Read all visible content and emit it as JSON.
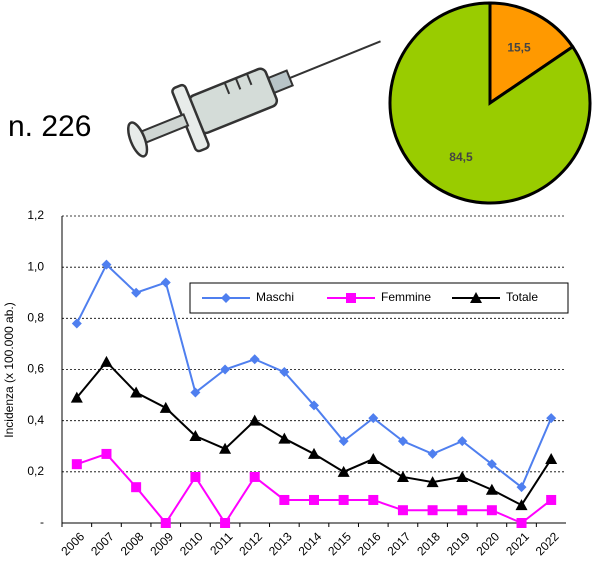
{
  "chart_data": [
    {
      "type": "line",
      "y_label": "Incidenza (x 100.000 ab.)",
      "categories": [
        "2006",
        "2007",
        "2008",
        "2009",
        "2010",
        "2011",
        "2012",
        "2013",
        "2014",
        "2015",
        "2016",
        "2017",
        "2018",
        "2019",
        "2020",
        "2021",
        "2022"
      ],
      "series": [
        {
          "name": "Maschi",
          "color": "#4f7fef",
          "marker": "diamond",
          "values": [
            0.78,
            1.01,
            0.9,
            0.94,
            0.51,
            0.6,
            0.64,
            0.59,
            0.46,
            0.32,
            0.41,
            0.32,
            0.27,
            0.32,
            0.23,
            0.14,
            0.41
          ]
        },
        {
          "name": "Femmine",
          "color": "#ff00ff",
          "marker": "square",
          "values": [
            0.23,
            0.27,
            0.14,
            0,
            0.18,
            0,
            0.18,
            0.09,
            0.09,
            0.09,
            0.09,
            0.05,
            0.05,
            0.05,
            0.05,
            0,
            0.09
          ]
        },
        {
          "name": "Totale",
          "color": "#000000",
          "marker": "triangle",
          "values": [
            0.49,
            0.63,
            0.51,
            0.45,
            0.34,
            0.29,
            0.4,
            0.33,
            0.27,
            0.2,
            0.25,
            0.18,
            0.16,
            0.18,
            0.13,
            0.07,
            0.25
          ]
        }
      ],
      "ylim": [
        0,
        1.2
      ],
      "yticks": [
        {
          "value": 0,
          "label": "-"
        },
        {
          "value": 0.2,
          "label": "0,2"
        },
        {
          "value": 0.4,
          "label": "0,4"
        },
        {
          "value": 0.6,
          "label": "0,6"
        },
        {
          "value": 0.8,
          "label": "0,8"
        },
        {
          "value": 1.0,
          "label": "1,0"
        },
        {
          "value": 1.2,
          "label": "1,2"
        }
      ],
      "grid": true,
      "legend": "top-right"
    },
    {
      "type": "pie",
      "annotation": "n. 226",
      "values": [
        15.5,
        84.5
      ],
      "value_labels": [
        "15,5",
        "84,5"
      ],
      "colors": [
        "#ff9900",
        "#99cc00"
      ]
    }
  ]
}
